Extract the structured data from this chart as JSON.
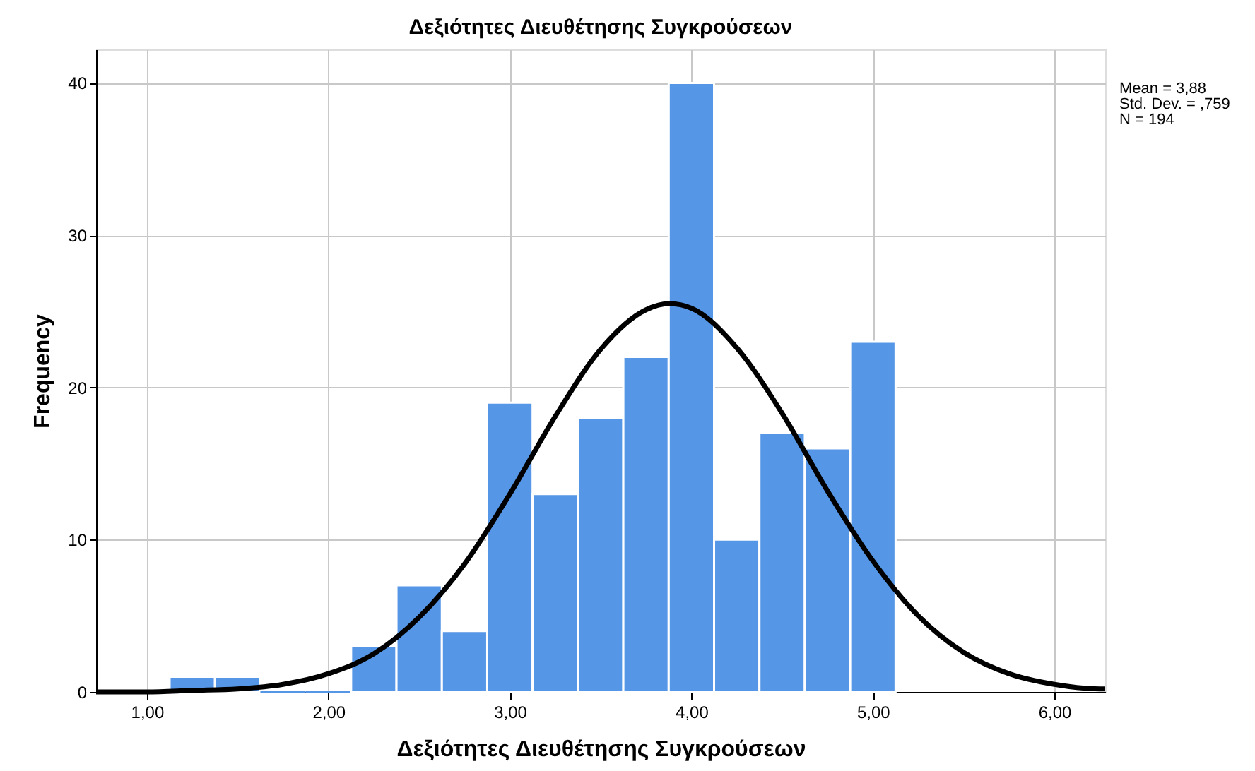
{
  "chart_data": {
    "type": "histogram",
    "title": "Δεξιότητες Διευθέτησης Συγκρούσεων",
    "xlabel": "Δεξιότητες Διευθέτησης Συγκρούσεων",
    "ylabel": "Frequency",
    "bins": [
      1.125,
      1.375,
      1.625,
      1.875,
      2.125,
      2.375,
      2.625,
      2.875,
      3.125,
      3.375,
      3.625,
      3.875,
      4.125,
      4.375,
      4.625,
      4.875,
      5.125
    ],
    "values": [
      1,
      1,
      0,
      0,
      3,
      7,
      4,
      19,
      13,
      18,
      22,
      40,
      10,
      17,
      16,
      23
    ],
    "color": "#5596e6",
    "series": [
      {
        "type": "line",
        "color": "#000000",
        "x": [
          0.72,
          1.0,
          1.25,
          1.5,
          1.75,
          2.0,
          2.25,
          2.5,
          2.75,
          3.0,
          3.25,
          3.5,
          3.75,
          3.88,
          4.0,
          4.25,
          4.5,
          4.75,
          5.0,
          5.25,
          5.5,
          5.75,
          6.0,
          6.25,
          6.28
        ],
        "values": [
          0.0,
          0.0,
          0.1,
          0.2,
          0.5,
          1.2,
          2.5,
          4.9,
          8.4,
          13.0,
          18.1,
          22.5,
          25.1,
          25.5,
          25.2,
          22.6,
          18.3,
          13.2,
          8.6,
          5.0,
          2.6,
          1.2,
          0.5,
          0.2,
          0.2
        ]
      }
    ],
    "annotations": [
      "Mean = 3,88",
      "Std. Dev. = ,759",
      "N = 194"
    ],
    "xlim": [
      0.72,
      6.28
    ],
    "xticks": [
      {
        "value": 1,
        "label": "1,00"
      },
      {
        "value": 2,
        "label": "2,00"
      },
      {
        "value": 3,
        "label": "3,00"
      },
      {
        "value": 4,
        "label": "4,00"
      },
      {
        "value": 5,
        "label": "5,00"
      },
      {
        "value": 6,
        "label": "6,00"
      }
    ],
    "ylim": [
      0,
      42.2
    ],
    "yticks": [
      0,
      10,
      20,
      30,
      40
    ],
    "grid": true
  }
}
